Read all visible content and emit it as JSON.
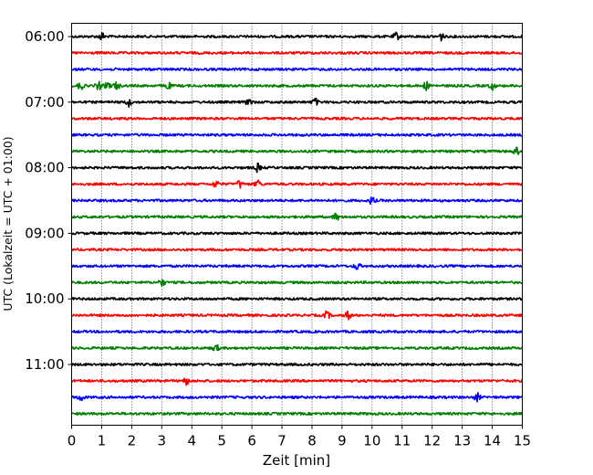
{
  "chart_data": {
    "type": "line",
    "xlabel": "Zeit  [min]",
    "ylabel": "UTC (Lokalzeit = UTC + 01:00)",
    "xlim": [
      0,
      15
    ],
    "x_ticks": [
      "0",
      "1",
      "2",
      "3",
      "4",
      "5",
      "6",
      "7",
      "8",
      "9",
      "10",
      "11",
      "12",
      "13",
      "14",
      "15"
    ],
    "y_ticks": [
      "06:00",
      "07:00",
      "08:00",
      "09:00",
      "10:00",
      "11:00"
    ],
    "grid": "vertical dotted",
    "legend": "none",
    "colors": [
      "#000000",
      "#ff0000",
      "#0000ff",
      "#008000"
    ],
    "series": [
      {
        "start": "06:00",
        "color": "#000000",
        "events": [
          1.0,
          10.8,
          12.3
        ]
      },
      {
        "start": "06:15",
        "color": "#ff0000",
        "events": []
      },
      {
        "start": "06:30",
        "color": "#0000ff",
        "events": []
      },
      {
        "start": "06:45",
        "color": "#008000",
        "events": [
          0.3,
          0.9,
          1.2,
          1.5,
          3.2,
          11.8,
          14.0
        ]
      },
      {
        "start": "07:00",
        "color": "#000000",
        "events": [
          1.9,
          5.9,
          8.1
        ]
      },
      {
        "start": "07:15",
        "color": "#ff0000",
        "events": []
      },
      {
        "start": "07:30",
        "color": "#0000ff",
        "events": []
      },
      {
        "start": "07:45",
        "color": "#008000",
        "events": [
          14.8
        ]
      },
      {
        "start": "08:00",
        "color": "#000000",
        "events": [
          6.2
        ]
      },
      {
        "start": "08:15",
        "color": "#ff0000",
        "events": [
          4.8,
          5.6,
          6.2
        ]
      },
      {
        "start": "08:30",
        "color": "#0000ff",
        "events": [
          10.0
        ]
      },
      {
        "start": "08:45",
        "color": "#008000",
        "events": [
          8.8
        ]
      },
      {
        "start": "09:00",
        "color": "#000000",
        "events": []
      },
      {
        "start": "09:15",
        "color": "#ff0000",
        "events": []
      },
      {
        "start": "09:30",
        "color": "#0000ff",
        "events": [
          9.5
        ]
      },
      {
        "start": "09:45",
        "color": "#008000",
        "events": [
          3.0
        ]
      },
      {
        "start": "10:00",
        "color": "#000000",
        "events": []
      },
      {
        "start": "10:15",
        "color": "#ff0000",
        "events": [
          8.5,
          9.2
        ]
      },
      {
        "start": "10:30",
        "color": "#0000ff",
        "events": []
      },
      {
        "start": "10:45",
        "color": "#008000",
        "events": [
          4.8
        ]
      },
      {
        "start": "11:00",
        "color": "#000000",
        "events": []
      },
      {
        "start": "11:15",
        "color": "#ff0000",
        "events": [
          3.8
        ]
      },
      {
        "start": "11:30",
        "color": "#0000ff",
        "events": [
          0.3,
          13.5
        ]
      },
      {
        "start": "11:45",
        "color": "#008000",
        "events": []
      }
    ]
  }
}
